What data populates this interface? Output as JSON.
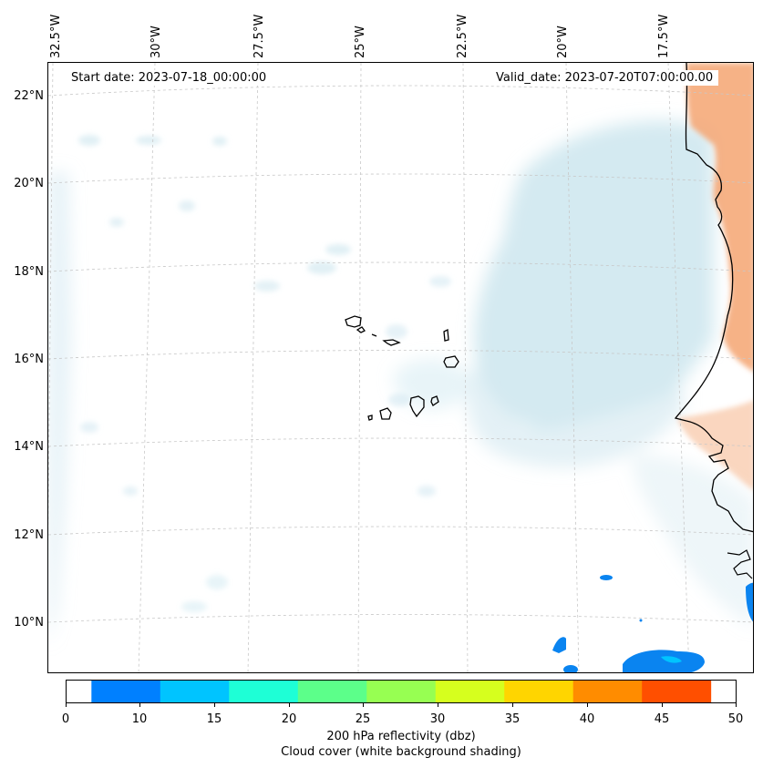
{
  "map": {
    "start_date": "Start date: 2023-07-18_00:00:00",
    "valid_date": "Valid_date: 2023-07-20T07:00:00.00",
    "lon_labels": [
      "32.5°W",
      "30°W",
      "27.5°W",
      "25°W",
      "22.5°W",
      "20°W",
      "17.5°W"
    ],
    "lat_labels": [
      "22°N",
      "20°N",
      "18°N",
      "16°N",
      "14°N",
      "12°N",
      "10°N"
    ]
  },
  "colorbar": {
    "ticks": [
      "0",
      "10",
      "15",
      "20",
      "25",
      "30",
      "35",
      "40",
      "45",
      "50"
    ],
    "colors": [
      "#0080ff",
      "#00c4ff",
      "#1effd6",
      "#5cff8a",
      "#97ff52",
      "#d6ff1e",
      "#ffd500",
      "#ff8c00",
      "#ff4f00"
    ],
    "label": "200 hPa reflectivity (dbz)",
    "sublabel": "Cloud cover (white background shading)"
  },
  "colors": {
    "cloud": "#cde6ef",
    "land": "#f5a571",
    "reflectivity": "#0a84f0",
    "gridline": "#c8c8c8"
  }
}
